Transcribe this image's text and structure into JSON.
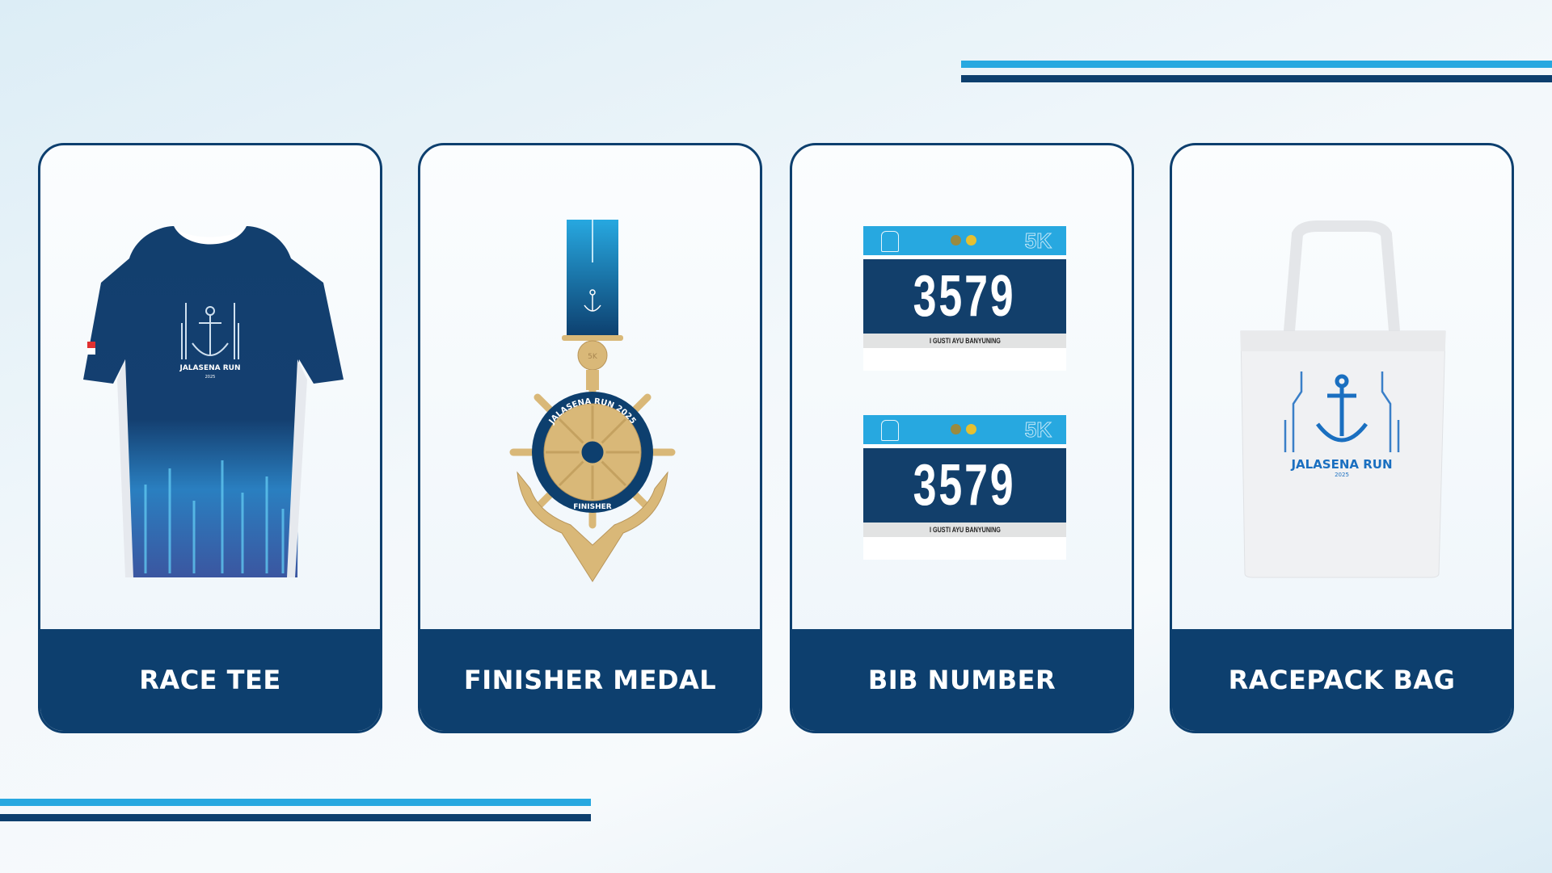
{
  "colors": {
    "navy": "#0d3f6e",
    "sky": "#27a8e0",
    "gold": "#d9b878"
  },
  "cards": [
    {
      "label": "RACE TEE",
      "logo_title": "JALASENA RUN",
      "logo_year": "2025"
    },
    {
      "label": "FINISHER MEDAL",
      "ring_text": "JALASENA RUN 2025",
      "bottom_text": "FINISHER",
      "distance": "5K"
    },
    {
      "label": "BIB NUMBER",
      "bibs": [
        {
          "distance": "5K",
          "number": "3579",
          "name": "I GUSTI AYU BANYUNING"
        },
        {
          "distance": "5K",
          "number": "3579",
          "name": "I GUSTI AYU BANYUNING"
        }
      ]
    },
    {
      "label": "RACEPACK BAG",
      "logo_title": "JALASENA RUN",
      "logo_year": "2025"
    }
  ]
}
